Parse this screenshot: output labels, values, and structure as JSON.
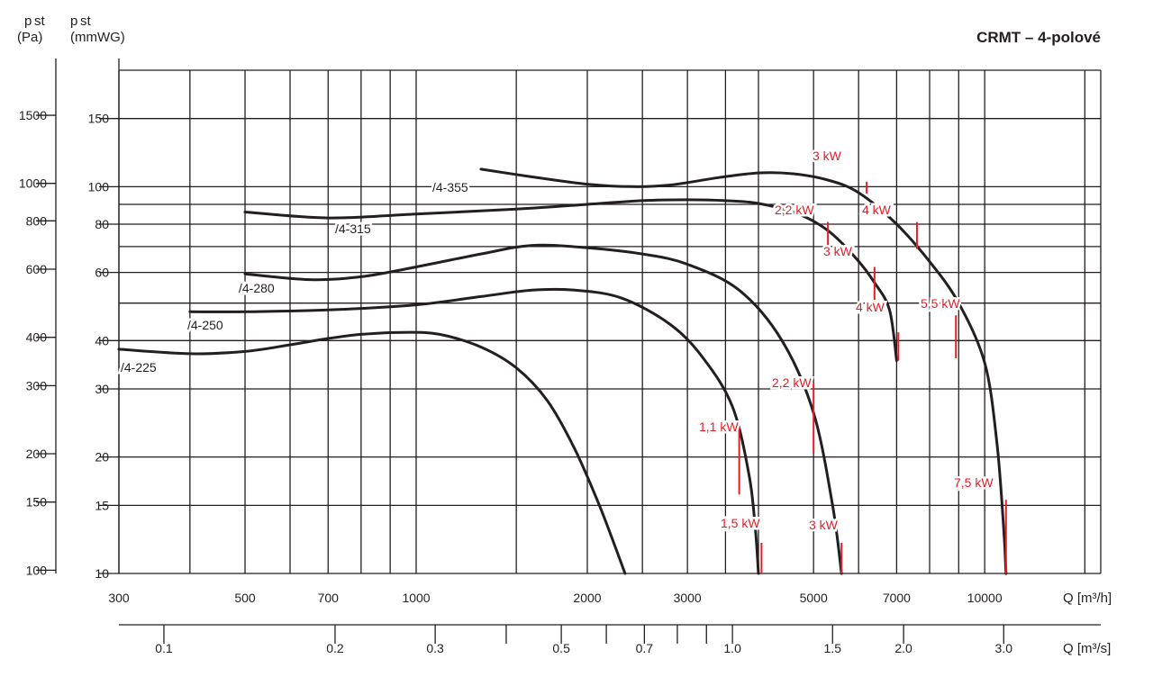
{
  "chart_data": {
    "type": "line",
    "title": "CRMT – 4-polové",
    "y_axes": [
      {
        "label_main": "p",
        "label_sub": "st",
        "unit": "(Pa)",
        "ticks": [
          {
            "v": 1500,
            "t": "1500"
          },
          {
            "v": 1000,
            "t": "1000"
          },
          {
            "v": 800,
            "t": "800"
          },
          {
            "v": 600,
            "t": "600"
          },
          {
            "v": 400,
            "t": "400"
          },
          {
            "v": 300,
            "t": "300"
          },
          {
            "v": 200,
            "t": "200"
          },
          {
            "v": 150,
            "t": "150"
          },
          {
            "v": 100,
            "t": "100"
          }
        ]
      },
      {
        "label_main": "p",
        "label_sub": "st",
        "unit": "(mmWG)",
        "ticks": [
          {
            "v": 150,
            "t": "150"
          },
          {
            "v": 100,
            "t": "100"
          },
          {
            "v": 80,
            "t": "80"
          },
          {
            "v": 60,
            "t": "60"
          },
          {
            "v": 40,
            "t": "40"
          },
          {
            "v": 30,
            "t": "30"
          },
          {
            "v": 20,
            "t": "20"
          },
          {
            "v": 15,
            "t": "15"
          },
          {
            "v": 10,
            "t": "10"
          }
        ]
      }
    ],
    "x_axes": [
      {
        "label": "Q [m³/h]",
        "scale": "log",
        "ticks": [
          {
            "v": 300,
            "t": "300"
          },
          {
            "v": 500,
            "t": "500"
          },
          {
            "v": 700,
            "t": "700"
          },
          {
            "v": 1000,
            "t": "1000"
          },
          {
            "v": 2000,
            "t": "2000"
          },
          {
            "v": 3000,
            "t": "3000"
          },
          {
            "v": 5000,
            "t": "5000"
          },
          {
            "v": 7000,
            "t": "7000"
          },
          {
            "v": 10000,
            "t": "10000"
          }
        ]
      },
      {
        "label": "Q [m³/s]",
        "scale": "log",
        "ticks": [
          {
            "v": 0.1,
            "t": "0.1"
          },
          {
            "v": 0.2,
            "t": "0.2"
          },
          {
            "v": 0.3,
            "t": "0.3"
          },
          {
            "v": 0.5,
            "t": "0.5"
          },
          {
            "v": 0.7,
            "t": "0.7"
          },
          {
            "v": 1.0,
            "t": "1.0"
          },
          {
            "v": 1.5,
            "t": "1.5"
          },
          {
            "v": 2.0,
            "t": "2.0"
          },
          {
            "v": 3.0,
            "t": "3.0"
          }
        ]
      }
    ],
    "x_range_m3h": [
      300,
      16000
    ],
    "y_range_mmwg": [
      10,
      200
    ],
    "y_scale": "log",
    "grid": true,
    "grid_x_m3h": [
      300,
      400,
      500,
      600,
      700,
      800,
      900,
      1000,
      1500,
      2000,
      2500,
      3000,
      3500,
      4000,
      5000,
      6000,
      7000,
      8000,
      9000,
      10000,
      15000,
      16000
    ],
    "grid_y_mmwg": [
      10,
      15,
      20,
      30,
      40,
      50,
      60,
      70,
      80,
      90,
      100,
      150,
      200
    ],
    "secondary_grid_x_m3s": [
      0.1,
      0.2,
      0.3,
      0.4,
      0.5,
      0.6,
      0.7,
      0.8,
      0.9,
      1.0,
      1.5,
      2.0,
      3.0
    ],
    "series": [
      {
        "name": "/4-225",
        "points": [
          [
            300,
            38
          ],
          [
            400,
            37
          ],
          [
            500,
            37.5
          ],
          [
            600,
            39
          ],
          [
            700,
            40.5
          ],
          [
            800,
            41.5
          ],
          [
            950,
            42
          ],
          [
            1100,
            41.5
          ],
          [
            1300,
            38.5
          ],
          [
            1500,
            34
          ],
          [
            1700,
            28
          ],
          [
            1900,
            21
          ],
          [
            2100,
            15
          ],
          [
            2250,
            11.5
          ],
          [
            2330,
            10
          ]
        ]
      },
      {
        "name": "/4-250",
        "points": [
          [
            400,
            47.5
          ],
          [
            500,
            47.5
          ],
          [
            700,
            48
          ],
          [
            1000,
            49.5
          ],
          [
            1300,
            52
          ],
          [
            1600,
            54
          ],
          [
            1900,
            54
          ],
          [
            2300,
            51.5
          ],
          [
            2800,
            44
          ],
          [
            3200,
            36
          ],
          [
            3600,
            27
          ],
          [
            3850,
            18
          ],
          [
            3950,
            13
          ],
          [
            4000,
            10
          ]
        ]
      },
      {
        "name": "/4-280",
        "points": [
          [
            500,
            59.5
          ],
          [
            650,
            57.5
          ],
          [
            800,
            58.5
          ],
          [
            1000,
            62
          ],
          [
            1300,
            67
          ],
          [
            1600,
            70.5
          ],
          [
            2000,
            69.5
          ],
          [
            2500,
            67
          ],
          [
            3000,
            63
          ],
          [
            3700,
            54
          ],
          [
            4400,
            40
          ],
          [
            5000,
            26
          ],
          [
            5400,
            15
          ],
          [
            5600,
            10
          ]
        ]
      },
      {
        "name": "/4-315",
        "points": [
          [
            500,
            86
          ],
          [
            700,
            83
          ],
          [
            1000,
            85
          ],
          [
            1500,
            87.5
          ],
          [
            2000,
            90
          ],
          [
            2500,
            92
          ],
          [
            3000,
            92.5
          ],
          [
            3500,
            92
          ],
          [
            4000,
            90.5
          ],
          [
            4700,
            85
          ],
          [
            5300,
            77
          ],
          [
            5900,
            66
          ],
          [
            6400,
            56.5
          ],
          [
            6800,
            48
          ],
          [
            7000,
            35.5
          ]
        ]
      },
      {
        "name": "/4-355",
        "points": [
          [
            1300,
            111
          ],
          [
            1600,
            106
          ],
          [
            2000,
            101.5
          ],
          [
            2400,
            100
          ],
          [
            2800,
            101
          ],
          [
            3400,
            105.5
          ],
          [
            4000,
            108.5
          ],
          [
            4600,
            108
          ],
          [
            5300,
            104
          ],
          [
            6000,
            96.5
          ],
          [
            7000,
            80
          ],
          [
            8000,
            64
          ],
          [
            9000,
            50
          ],
          [
            10000,
            35
          ],
          [
            10500,
            22
          ],
          [
            10800,
            13
          ],
          [
            10900,
            10
          ]
        ]
      }
    ],
    "power_markers": [
      {
        "label": "1,1 kW",
        "q": 3700,
        "p_top": 24,
        "p_bot": 16
      },
      {
        "label": "1,5 kW",
        "q": 4050,
        "p_top": 12,
        "p_bot": 10
      },
      {
        "label": "2,2 kW",
        "q": 5000,
        "p_top": 31,
        "p_bot": 20.5
      },
      {
        "label": "3 kW",
        "q": 5600,
        "p_top": 12,
        "p_bot": 10
      },
      {
        "label": "2,2 kW",
        "q": 5300,
        "p_top": 81,
        "p_bot": 69
      },
      {
        "label": "3 kW",
        "q": 6400,
        "p_top": 62,
        "p_bot": 51
      },
      {
        "label": "4 kW",
        "q": 7050,
        "p_top": 42,
        "p_bot": 35.5
      },
      {
        "label": "3 kW",
        "q": 6200,
        "p_top": 103,
        "p_bot": 96
      },
      {
        "label": "4 kW",
        "q": 7600,
        "p_top": 81,
        "p_bot": 69
      },
      {
        "label": "5,5 kW",
        "q": 8900,
        "p_top": 46.5,
        "p_bot": 36
      },
      {
        "label": "7,5 kW",
        "q": 10900,
        "p_top": 15.5,
        "p_bot": 10
      }
    ]
  },
  "colors": {
    "curve": "#231f20",
    "grid": "#231f20",
    "marker": "#e31e24",
    "text": "#231f20"
  }
}
